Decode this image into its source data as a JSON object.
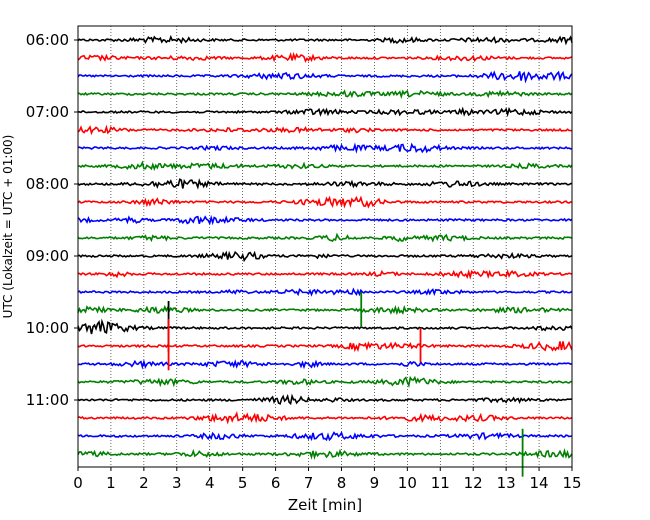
{
  "chart_data": {
    "type": "line",
    "title": "",
    "xlabel": "Zeit  [min]",
    "ylabel": "UTC (Lokalzeit = UTC + 01:00)",
    "xlim": [
      0,
      15
    ],
    "x_ticks": [
      "0",
      "1",
      "2",
      "3",
      "4",
      "5",
      "6",
      "7",
      "8",
      "9",
      "10",
      "11",
      "12",
      "13",
      "14",
      "15"
    ],
    "y_ticks": [
      "06:00",
      "07:00",
      "08:00",
      "09:00",
      "10:00",
      "11:00"
    ],
    "grid": "vertical dotted",
    "trace_interval_min": 15,
    "series": [
      {
        "start": "06:00",
        "color": "#000000"
      },
      {
        "start": "06:15",
        "color": "#ff0000"
      },
      {
        "start": "06:30",
        "color": "#0000ff"
      },
      {
        "start": "06:45",
        "color": "#008000"
      },
      {
        "start": "07:00",
        "color": "#000000"
      },
      {
        "start": "07:15",
        "color": "#ff0000"
      },
      {
        "start": "07:30",
        "color": "#0000ff"
      },
      {
        "start": "07:45",
        "color": "#008000"
      },
      {
        "start": "08:00",
        "color": "#000000"
      },
      {
        "start": "08:15",
        "color": "#ff0000"
      },
      {
        "start": "08:30",
        "color": "#0000ff"
      },
      {
        "start": "08:45",
        "color": "#008000"
      },
      {
        "start": "09:00",
        "color": "#000000"
      },
      {
        "start": "09:15",
        "color": "#ff0000"
      },
      {
        "start": "09:30",
        "color": "#0000ff"
      },
      {
        "start": "09:45",
        "color": "#008000"
      },
      {
        "start": "10:00",
        "color": "#000000"
      },
      {
        "start": "10:15",
        "color": "#ff0000"
      },
      {
        "start": "10:30",
        "color": "#0000ff"
      },
      {
        "start": "10:45",
        "color": "#008000"
      },
      {
        "start": "11:00",
        "color": "#000000"
      },
      {
        "start": "11:15",
        "color": "#ff0000"
      },
      {
        "start": "11:30",
        "color": "#0000ff"
      },
      {
        "start": "11:45",
        "color": "#008000"
      }
    ],
    "spikes": [
      {
        "trace": 15,
        "x": 8.6,
        "amplitude": 1.0
      },
      {
        "trace": 16,
        "x": 2.75,
        "amplitude": 1.5
      },
      {
        "trace": 17,
        "x": 2.75,
        "amplitude": 1.5
      },
      {
        "trace": 17,
        "x": 10.4,
        "amplitude": 1.0
      },
      {
        "trace": 23,
        "x": 13.5,
        "amplitude": 1.4
      }
    ]
  }
}
